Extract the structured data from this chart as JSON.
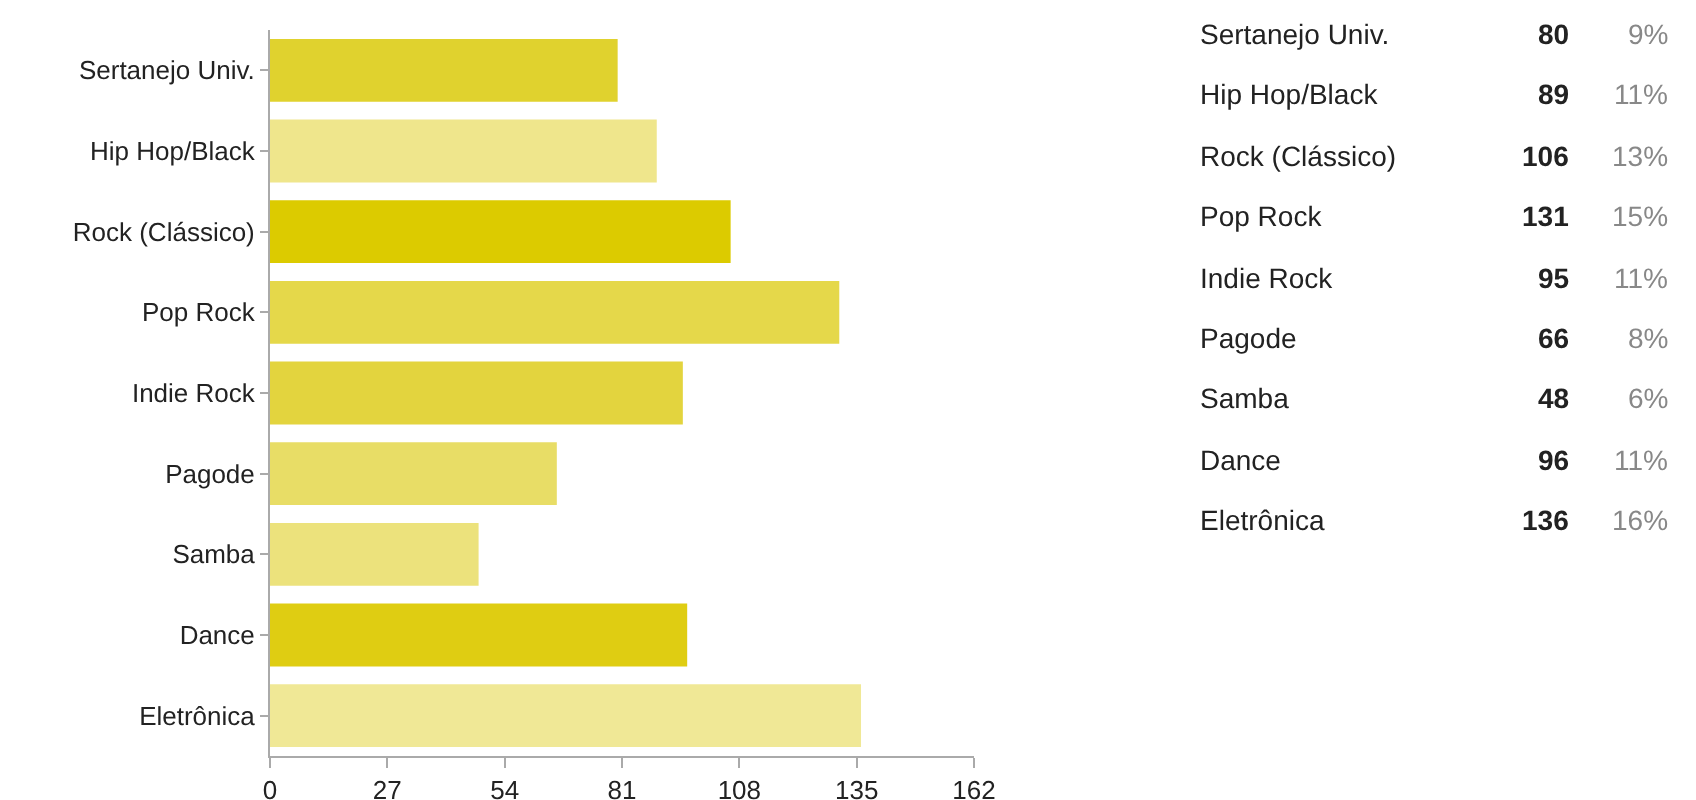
{
  "chart_data": [
    {
      "type": "bar",
      "orientation": "horizontal",
      "categories": [
        "Sertanejo Univ.",
        "Hip Hop/Black",
        "Rock (Clássico)",
        "Pop Rock",
        "Indie Rock",
        "Pagode",
        "Samba",
        "Dance",
        "Eletrônica"
      ],
      "values": [
        80,
        89,
        106,
        131,
        95,
        66,
        48,
        96,
        136
      ],
      "colors": [
        "#e0d22e",
        "#efe68c",
        "#dccb00",
        "#e5d84a",
        "#e3d43e",
        "#e8dd66",
        "#ece27c",
        "#dfcd12",
        "#f0e896"
      ],
      "xlim": [
        0,
        162
      ],
      "xticks": [
        0,
        27,
        54,
        81,
        108,
        135,
        162
      ]
    },
    {
      "type": "other",
      "categories": [
        "Sertanejo Univ.",
        "Hip Hop/Black",
        "Rock (Clássico)",
        "Pop Rock",
        "Indie Rock",
        "Pagode",
        "Samba",
        "Dance",
        "Eletrônica"
      ],
      "series": [
        {
          "values": [
            80,
            89,
            106,
            131,
            95,
            66,
            48,
            96,
            136
          ],
          "value_labels": [
            "80",
            "89",
            "106",
            "131",
            "95",
            "66",
            "48",
            "96",
            "136"
          ],
          "color": "#222222"
        },
        {
          "values": [
            9,
            11,
            13,
            15,
            11,
            8,
            6,
            11,
            16
          ],
          "value_labels": [
            "9%",
            "11%",
            "13%",
            "15%",
            "11%",
            "8%",
            "6%",
            "11%",
            "16%"
          ],
          "color": "#888888"
        }
      ]
    }
  ]
}
